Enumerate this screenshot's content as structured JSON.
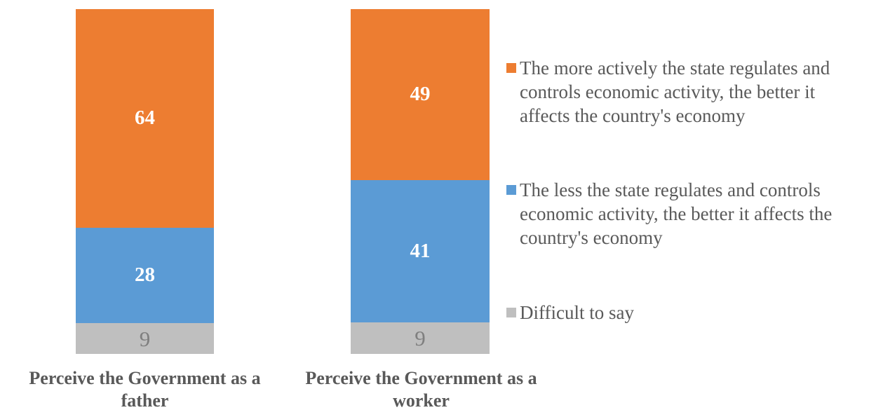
{
  "chart_data": {
    "type": "bar",
    "variant": "stacked-column",
    "title": "",
    "xlabel": "",
    "ylabel": "",
    "grid": false,
    "axes_visible": false,
    "legend_position": "right",
    "text_color": "#595959",
    "categories": [
      "Perceive the Government as a father",
      "Perceive the Government as a worker"
    ],
    "category_lines": [
      [
        "Perceive the Government as a",
        "father"
      ],
      [
        "Perceive the Government as a",
        "worker"
      ]
    ],
    "series": [
      {
        "name": "The more actively the state regulates and controls economic activity, the better it affects the country's economy",
        "name_lines": [
          "The more actively the state regulates and",
          "controls economic activity, the better it",
          "affects the country's economy"
        ],
        "color": "#ED7D31",
        "label_color": "#FFFFFF",
        "values": [
          64,
          49
        ]
      },
      {
        "name": "The less the state regulates and controls economic activity, the better it affects the country's economy",
        "name_lines": [
          "The less the state regulates and controls",
          "economic activity, the better it affects the",
          "country's economy"
        ],
        "color": "#5B9BD5",
        "label_color": "#FFFFFF",
        "values": [
          28,
          41
        ]
      },
      {
        "name": "Difficult to say",
        "name_lines": [
          "Difficult to say"
        ],
        "color": "#BFBFBF",
        "label_color": "#7F7F7F",
        "values": [
          9,
          9
        ]
      }
    ]
  }
}
